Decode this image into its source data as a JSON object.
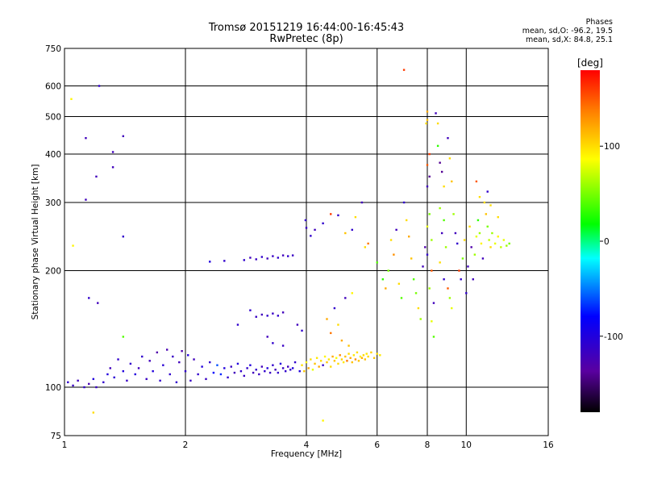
{
  "title_line1": "Tromsø 20151219 16:44:00-16:45:43",
  "title_line2": "RwPretec (8p)",
  "phase_box": {
    "heading": "Phases",
    "line1": "mean, sd,O: -96.2, 19.5",
    "line2": "mean, sd,X:  84.8, 25.1"
  },
  "colorbar": {
    "label": "[deg]",
    "tick_labels": [
      "100",
      "0",
      "-100"
    ],
    "tick_values": [
      100,
      0,
      -100
    ],
    "range": [
      -180,
      180
    ],
    "colormap": "rainbow"
  },
  "chart_data": {
    "type": "scatter",
    "xlabel": "Frequency [MHz]",
    "ylabel": "Stationary phase Virtual Height [km]",
    "x_scale": "log",
    "y_scale": "log",
    "xlim": [
      1,
      16
    ],
    "ylim": [
      75,
      750
    ],
    "x_ticks": [
      1,
      2,
      4,
      6,
      8,
      10,
      16
    ],
    "y_ticks": [
      75,
      100,
      200,
      300,
      400,
      500,
      600,
      750
    ],
    "grid": true,
    "points": [
      {
        "x": 1.02,
        "y": 103,
        "p": -110
      },
      {
        "x": 1.05,
        "y": 101,
        "p": -115
      },
      {
        "x": 1.08,
        "y": 104,
        "p": -120
      },
      {
        "x": 1.12,
        "y": 100,
        "p": -110
      },
      {
        "x": 1.15,
        "y": 102,
        "p": -125
      },
      {
        "x": 1.18,
        "y": 105,
        "p": -100
      },
      {
        "x": 1.2,
        "y": 100,
        "p": -115
      },
      {
        "x": 1.04,
        "y": 555,
        "p": 90
      },
      {
        "x": 1.05,
        "y": 232,
        "p": 90
      },
      {
        "x": 1.13,
        "y": 440,
        "p": -120
      },
      {
        "x": 1.13,
        "y": 305,
        "p": -120
      },
      {
        "x": 1.15,
        "y": 170,
        "p": -110
      },
      {
        "x": 1.2,
        "y": 350,
        "p": -120
      },
      {
        "x": 1.22,
        "y": 600,
        "p": -110
      },
      {
        "x": 1.21,
        "y": 165,
        "p": -120
      },
      {
        "x": 1.32,
        "y": 405,
        "p": -120
      },
      {
        "x": 1.32,
        "y": 370,
        "p": -120
      },
      {
        "x": 1.4,
        "y": 245,
        "p": -110
      },
      {
        "x": 1.4,
        "y": 445,
        "p": -120
      },
      {
        "x": 1.4,
        "y": 135,
        "p": 40
      },
      {
        "x": 1.18,
        "y": 86,
        "p": 100
      },
      {
        "x": 1.25,
        "y": 103,
        "p": -110
      },
      {
        "x": 1.28,
        "y": 108,
        "p": -100
      },
      {
        "x": 1.3,
        "y": 112,
        "p": -120
      },
      {
        "x": 1.33,
        "y": 106,
        "p": -105
      },
      {
        "x": 1.36,
        "y": 118,
        "p": -110
      },
      {
        "x": 1.4,
        "y": 110,
        "p": -100
      },
      {
        "x": 1.43,
        "y": 104,
        "p": -115
      },
      {
        "x": 1.46,
        "y": 115,
        "p": -110
      },
      {
        "x": 1.5,
        "y": 108,
        "p": -100
      },
      {
        "x": 1.53,
        "y": 112,
        "p": -120
      },
      {
        "x": 1.56,
        "y": 120,
        "p": -110
      },
      {
        "x": 1.6,
        "y": 105,
        "p": -115
      },
      {
        "x": 1.63,
        "y": 117,
        "p": -120
      },
      {
        "x": 1.66,
        "y": 110,
        "p": -100
      },
      {
        "x": 1.7,
        "y": 123,
        "p": -130
      },
      {
        "x": 1.73,
        "y": 104,
        "p": -110
      },
      {
        "x": 1.76,
        "y": 114,
        "p": -105
      },
      {
        "x": 1.8,
        "y": 125,
        "p": -125
      },
      {
        "x": 1.83,
        "y": 108,
        "p": -110
      },
      {
        "x": 1.86,
        "y": 120,
        "p": -115
      },
      {
        "x": 1.9,
        "y": 103,
        "p": -110
      },
      {
        "x": 1.93,
        "y": 116,
        "p": -120
      },
      {
        "x": 1.96,
        "y": 124,
        "p": -130
      },
      {
        "x": 2.0,
        "y": 110,
        "p": -110
      },
      {
        "x": 2.03,
        "y": 121,
        "p": -100
      },
      {
        "x": 2.06,
        "y": 104,
        "p": -115
      },
      {
        "x": 2.1,
        "y": 118,
        "p": -120
      },
      {
        "x": 2.15,
        "y": 108,
        "p": -110
      },
      {
        "x": 2.2,
        "y": 113,
        "p": -100
      },
      {
        "x": 2.25,
        "y": 105,
        "p": -115
      },
      {
        "x": 2.3,
        "y": 116,
        "p": -110
      },
      {
        "x": 2.35,
        "y": 109,
        "p": -80
      },
      {
        "x": 2.4,
        "y": 114,
        "p": -60
      },
      {
        "x": 2.45,
        "y": 108,
        "p": -70
      },
      {
        "x": 2.5,
        "y": 112,
        "p": -100
      },
      {
        "x": 2.55,
        "y": 106,
        "p": -110
      },
      {
        "x": 2.6,
        "y": 113,
        "p": -115
      },
      {
        "x": 2.65,
        "y": 109,
        "p": -120
      },
      {
        "x": 2.7,
        "y": 115,
        "p": -100
      },
      {
        "x": 2.75,
        "y": 110,
        "p": -110
      },
      {
        "x": 2.8,
        "y": 107,
        "p": -115
      },
      {
        "x": 2.85,
        "y": 112,
        "p": -110
      },
      {
        "x": 2.9,
        "y": 114,
        "p": -100
      },
      {
        "x": 2.95,
        "y": 109,
        "p": -120
      },
      {
        "x": 3.0,
        "y": 111,
        "p": -110
      },
      {
        "x": 3.05,
        "y": 108,
        "p": -115
      },
      {
        "x": 3.1,
        "y": 113,
        "p": -120
      },
      {
        "x": 3.15,
        "y": 110,
        "p": -110
      },
      {
        "x": 3.2,
        "y": 112,
        "p": -100
      },
      {
        "x": 3.25,
        "y": 109,
        "p": -115
      },
      {
        "x": 3.3,
        "y": 114,
        "p": -110
      },
      {
        "x": 3.35,
        "y": 111,
        "p": -120
      },
      {
        "x": 3.4,
        "y": 109,
        "p": -110
      },
      {
        "x": 3.45,
        "y": 115,
        "p": -100
      },
      {
        "x": 3.5,
        "y": 112,
        "p": -115
      },
      {
        "x": 3.55,
        "y": 110,
        "p": -110
      },
      {
        "x": 3.6,
        "y": 113,
        "p": -120
      },
      {
        "x": 3.65,
        "y": 111,
        "p": -110
      },
      {
        "x": 3.7,
        "y": 112,
        "p": -100
      },
      {
        "x": 3.75,
        "y": 116,
        "p": -110
      },
      {
        "x": 2.3,
        "y": 211,
        "p": -100
      },
      {
        "x": 2.5,
        "y": 212,
        "p": -110
      },
      {
        "x": 2.8,
        "y": 213,
        "p": -110
      },
      {
        "x": 2.9,
        "y": 216,
        "p": -120
      },
      {
        "x": 3.0,
        "y": 214,
        "p": -115
      },
      {
        "x": 3.1,
        "y": 217,
        "p": -110
      },
      {
        "x": 3.2,
        "y": 215,
        "p": -120
      },
      {
        "x": 3.3,
        "y": 218,
        "p": -115
      },
      {
        "x": 3.4,
        "y": 216,
        "p": -110
      },
      {
        "x": 3.5,
        "y": 219,
        "p": -120
      },
      {
        "x": 3.6,
        "y": 218,
        "p": -110
      },
      {
        "x": 3.7,
        "y": 219,
        "p": -115
      },
      {
        "x": 2.7,
        "y": 145,
        "p": -110
      },
      {
        "x": 2.9,
        "y": 158,
        "p": -110
      },
      {
        "x": 3.0,
        "y": 152,
        "p": -115
      },
      {
        "x": 3.1,
        "y": 154,
        "p": -120
      },
      {
        "x": 3.2,
        "y": 153,
        "p": -110
      },
      {
        "x": 3.3,
        "y": 155,
        "p": -115
      },
      {
        "x": 3.4,
        "y": 153,
        "p": -110
      },
      {
        "x": 3.5,
        "y": 156,
        "p": -120
      },
      {
        "x": 3.2,
        "y": 135,
        "p": -120
      },
      {
        "x": 3.3,
        "y": 130,
        "p": -110
      },
      {
        "x": 3.5,
        "y": 128,
        "p": -115
      },
      {
        "x": 3.8,
        "y": 145,
        "p": -120
      },
      {
        "x": 3.9,
        "y": 140,
        "p": -110
      },
      {
        "x": 3.98,
        "y": 270,
        "p": -110
      },
      {
        "x": 4.0,
        "y": 258,
        "p": -115
      },
      {
        "x": 4.1,
        "y": 246,
        "p": -110
      },
      {
        "x": 4.2,
        "y": 255,
        "p": -120
      },
      {
        "x": 4.4,
        "y": 265,
        "p": -110
      },
      {
        "x": 3.85,
        "y": 110,
        "p": -100
      },
      {
        "x": 3.9,
        "y": 114,
        "p": 100
      },
      {
        "x": 3.95,
        "y": 110,
        "p": 110
      },
      {
        "x": 4.0,
        "y": 116,
        "p": 90
      },
      {
        "x": 4.05,
        "y": 112,
        "p": 120
      },
      {
        "x": 4.1,
        "y": 118,
        "p": 100
      },
      {
        "x": 4.15,
        "y": 111,
        "p": 80
      },
      {
        "x": 4.2,
        "y": 115,
        "p": 110
      },
      {
        "x": 4.25,
        "y": 119,
        "p": 95
      },
      {
        "x": 4.3,
        "y": 113,
        "p": 120
      },
      {
        "x": 4.35,
        "y": 117,
        "p": 100
      },
      {
        "x": 4.4,
        "y": 114,
        "p": -110
      },
      {
        "x": 4.45,
        "y": 120,
        "p": 90
      },
      {
        "x": 4.5,
        "y": 116,
        "p": 110
      },
      {
        "x": 4.55,
        "y": 118,
        "p": 95
      },
      {
        "x": 4.6,
        "y": 113,
        "p": 100
      },
      {
        "x": 4.65,
        "y": 120,
        "p": 120
      },
      {
        "x": 4.7,
        "y": 117,
        "p": 110
      },
      {
        "x": 4.75,
        "y": 119,
        "p": 85
      },
      {
        "x": 4.8,
        "y": 115,
        "p": 100
      },
      {
        "x": 4.85,
        "y": 121,
        "p": 130
      },
      {
        "x": 4.9,
        "y": 118,
        "p": 105
      },
      {
        "x": 4.95,
        "y": 116,
        "p": 95
      },
      {
        "x": 5.0,
        "y": 120,
        "p": 110
      },
      {
        "x": 5.05,
        "y": 117,
        "p": 140
      },
      {
        "x": 5.1,
        "y": 122,
        "p": 100
      },
      {
        "x": 5.15,
        "y": 119,
        "p": 120
      },
      {
        "x": 5.2,
        "y": 116,
        "p": 110
      },
      {
        "x": 5.25,
        "y": 121,
        "p": 95
      },
      {
        "x": 5.3,
        "y": 118,
        "p": 130
      },
      {
        "x": 5.35,
        "y": 123,
        "p": 100
      },
      {
        "x": 5.4,
        "y": 117,
        "p": 110
      },
      {
        "x": 5.45,
        "y": 120,
        "p": 90
      },
      {
        "x": 5.5,
        "y": 119,
        "p": 120
      },
      {
        "x": 5.55,
        "y": 121,
        "p": 100
      },
      {
        "x": 5.6,
        "y": 118,
        "p": 110
      },
      {
        "x": 5.65,
        "y": 122,
        "p": 95
      },
      {
        "x": 5.7,
        "y": 120,
        "p": 100
      },
      {
        "x": 5.8,
        "y": 123,
        "p": 105
      },
      {
        "x": 5.9,
        "y": 119,
        "p": 110
      },
      {
        "x": 6.0,
        "y": 122,
        "p": 100
      },
      {
        "x": 6.1,
        "y": 121,
        "p": 95
      },
      {
        "x": 4.5,
        "y": 150,
        "p": 120
      },
      {
        "x": 4.6,
        "y": 138,
        "p": 140
      },
      {
        "x": 4.7,
        "y": 160,
        "p": -110
      },
      {
        "x": 4.8,
        "y": 145,
        "p": 100
      },
      {
        "x": 4.9,
        "y": 132,
        "p": 120
      },
      {
        "x": 5.0,
        "y": 170,
        "p": -120
      },
      {
        "x": 5.1,
        "y": 128,
        "p": 110
      },
      {
        "x": 5.2,
        "y": 175,
        "p": 90
      },
      {
        "x": 4.4,
        "y": 82,
        "p": 90
      },
      {
        "x": 4.6,
        "y": 280,
        "p": 160
      },
      {
        "x": 4.8,
        "y": 278,
        "p": -110
      },
      {
        "x": 5.0,
        "y": 250,
        "p": 110
      },
      {
        "x": 5.2,
        "y": 255,
        "p": -110
      },
      {
        "x": 5.3,
        "y": 275,
        "p": 100
      },
      {
        "x": 5.5,
        "y": 300,
        "p": -120
      },
      {
        "x": 5.6,
        "y": 230,
        "p": 100
      },
      {
        "x": 5.7,
        "y": 235,
        "p": 140
      },
      {
        "x": 6.0,
        "y": 210,
        "p": 40
      },
      {
        "x": 6.2,
        "y": 190,
        "p": 30
      },
      {
        "x": 6.3,
        "y": 180,
        "p": 120
      },
      {
        "x": 6.4,
        "y": 200,
        "p": 50
      },
      {
        "x": 6.5,
        "y": 240,
        "p": 100
      },
      {
        "x": 6.6,
        "y": 220,
        "p": 130
      },
      {
        "x": 6.7,
        "y": 255,
        "p": -120
      },
      {
        "x": 6.8,
        "y": 185,
        "p": 100
      },
      {
        "x": 6.9,
        "y": 170,
        "p": 40
      },
      {
        "x": 7.0,
        "y": 660,
        "p": 160
      },
      {
        "x": 7.0,
        "y": 300,
        "p": -110
      },
      {
        "x": 7.1,
        "y": 270,
        "p": 100
      },
      {
        "x": 7.2,
        "y": 245,
        "p": 120
      },
      {
        "x": 7.3,
        "y": 215,
        "p": 110
      },
      {
        "x": 7.4,
        "y": 190,
        "p": 40
      },
      {
        "x": 7.5,
        "y": 175,
        "p": 50
      },
      {
        "x": 7.6,
        "y": 160,
        "p": 100
      },
      {
        "x": 7.7,
        "y": 150,
        "p": 60
      },
      {
        "x": 7.8,
        "y": 205,
        "p": -120
      },
      {
        "x": 7.9,
        "y": 230,
        "p": -130
      },
      {
        "x": 7.95,
        "y": 480,
        "p": 100
      },
      {
        "x": 8.0,
        "y": 515,
        "p": 120
      },
      {
        "x": 8.0,
        "y": 490,
        "p": 110
      },
      {
        "x": 8.1,
        "y": 400,
        "p": 160
      },
      {
        "x": 8.0,
        "y": 375,
        "p": 150
      },
      {
        "x": 8.1,
        "y": 350,
        "p": -140
      },
      {
        "x": 8.0,
        "y": 330,
        "p": -120
      },
      {
        "x": 8.1,
        "y": 280,
        "p": 50
      },
      {
        "x": 8.0,
        "y": 260,
        "p": 80
      },
      {
        "x": 8.2,
        "y": 240,
        "p": 60
      },
      {
        "x": 8.0,
        "y": 220,
        "p": -110
      },
      {
        "x": 8.2,
        "y": 200,
        "p": 150
      },
      {
        "x": 8.1,
        "y": 180,
        "p": 60
      },
      {
        "x": 8.3,
        "y": 165,
        "p": -120
      },
      {
        "x": 8.2,
        "y": 148,
        "p": 80
      },
      {
        "x": 8.3,
        "y": 135,
        "p": 40
      },
      {
        "x": 8.4,
        "y": 510,
        "p": -120
      },
      {
        "x": 8.5,
        "y": 480,
        "p": 100
      },
      {
        "x": 8.5,
        "y": 420,
        "p": 30
      },
      {
        "x": 8.6,
        "y": 380,
        "p": -140
      },
      {
        "x": 8.7,
        "y": 360,
        "p": -140
      },
      {
        "x": 8.8,
        "y": 330,
        "p": 100
      },
      {
        "x": 8.6,
        "y": 290,
        "p": 60
      },
      {
        "x": 8.8,
        "y": 270,
        "p": 40
      },
      {
        "x": 8.7,
        "y": 250,
        "p": -120
      },
      {
        "x": 8.9,
        "y": 230,
        "p": 60
      },
      {
        "x": 8.6,
        "y": 210,
        "p": 100
      },
      {
        "x": 8.8,
        "y": 190,
        "p": -110
      },
      {
        "x": 9.0,
        "y": 180,
        "p": 150
      },
      {
        "x": 9.1,
        "y": 170,
        "p": 60
      },
      {
        "x": 9.2,
        "y": 160,
        "p": 80
      },
      {
        "x": 9.0,
        "y": 440,
        "p": -120
      },
      {
        "x": 9.1,
        "y": 390,
        "p": 100
      },
      {
        "x": 9.2,
        "y": 340,
        "p": 110
      },
      {
        "x": 9.3,
        "y": 280,
        "p": 60
      },
      {
        "x": 9.4,
        "y": 250,
        "p": -120
      },
      {
        "x": 9.5,
        "y": 235,
        "p": -110
      },
      {
        "x": 9.6,
        "y": 200,
        "p": 160
      },
      {
        "x": 9.7,
        "y": 190,
        "p": -110
      },
      {
        "x": 9.8,
        "y": 215,
        "p": 50
      },
      {
        "x": 9.9,
        "y": 240,
        "p": 100
      },
      {
        "x": 10.0,
        "y": 175,
        "p": -110
      },
      {
        "x": 10.1,
        "y": 205,
        "p": -120
      },
      {
        "x": 10.2,
        "y": 260,
        "p": 100
      },
      {
        "x": 10.3,
        "y": 230,
        "p": -130
      },
      {
        "x": 10.4,
        "y": 190,
        "p": -120
      },
      {
        "x": 10.5,
        "y": 220,
        "p": 60
      },
      {
        "x": 10.6,
        "y": 245,
        "p": 80
      },
      {
        "x": 10.7,
        "y": 270,
        "p": 30
      },
      {
        "x": 10.8,
        "y": 250,
        "p": 60
      },
      {
        "x": 10.9,
        "y": 235,
        "p": 90
      },
      {
        "x": 11.0,
        "y": 215,
        "p": -120
      },
      {
        "x": 11.1,
        "y": 300,
        "p": 100
      },
      {
        "x": 11.2,
        "y": 280,
        "p": 110
      },
      {
        "x": 11.3,
        "y": 260,
        "p": 50
      },
      {
        "x": 11.4,
        "y": 240,
        "p": 70
      },
      {
        "x": 11.5,
        "y": 230,
        "p": 100
      },
      {
        "x": 11.6,
        "y": 250,
        "p": 60
      },
      {
        "x": 11.8,
        "y": 235,
        "p": 80
      },
      {
        "x": 12.0,
        "y": 245,
        "p": 90
      },
      {
        "x": 12.2,
        "y": 230,
        "p": 70
      },
      {
        "x": 12.4,
        "y": 240,
        "p": 80
      },
      {
        "x": 12.6,
        "y": 232,
        "p": 60
      },
      {
        "x": 12.8,
        "y": 235,
        "p": 50
      },
      {
        "x": 11.3,
        "y": 320,
        "p": -110
      },
      {
        "x": 10.6,
        "y": 340,
        "p": 150
      },
      {
        "x": 10.8,
        "y": 310,
        "p": 100
      },
      {
        "x": 11.5,
        "y": 295,
        "p": 100
      },
      {
        "x": 12.0,
        "y": 275,
        "p": 100
      }
    ]
  }
}
